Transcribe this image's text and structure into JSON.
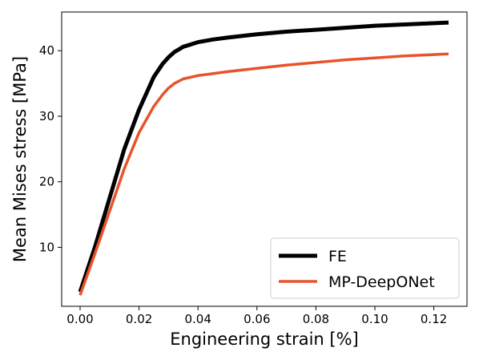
{
  "chart_data": {
    "type": "line",
    "title": "",
    "xlabel": "Engineering strain [%]",
    "ylabel": "Mean Mises stress [MPa]",
    "xlim": [
      -0.00625,
      0.13125
    ],
    "ylim": [
      1.0,
      45.9
    ],
    "xticks": [
      0.0,
      0.02,
      0.04,
      0.06,
      0.08,
      0.1,
      0.12
    ],
    "xtick_labels": [
      "0.00",
      "0.02",
      "0.04",
      "0.06",
      "0.08",
      "0.10",
      "0.12"
    ],
    "yticks": [
      10,
      20,
      30,
      40
    ],
    "ytick_labels": [
      "10",
      "20",
      "30",
      "40"
    ],
    "grid": false,
    "legend_position": "bottom-right",
    "series": [
      {
        "name": "FE",
        "color": "#000000",
        "x": [
          0.0,
          0.005,
          0.01,
          0.015,
          0.02,
          0.025,
          0.028,
          0.03,
          0.032,
          0.035,
          0.04,
          0.045,
          0.05,
          0.06,
          0.07,
          0.08,
          0.09,
          0.1,
          0.11,
          0.125
        ],
        "y": [
          3.2,
          10.0,
          17.5,
          25.0,
          31.0,
          36.0,
          38.0,
          39.0,
          39.8,
          40.6,
          41.3,
          41.7,
          42.0,
          42.5,
          42.9,
          43.2,
          43.5,
          43.8,
          44.0,
          44.3
        ]
      },
      {
        "name": "MP-DeepONet",
        "color": "#e8532b",
        "x": [
          0.0,
          0.005,
          0.01,
          0.015,
          0.02,
          0.025,
          0.028,
          0.03,
          0.032,
          0.035,
          0.04,
          0.045,
          0.05,
          0.06,
          0.07,
          0.08,
          0.09,
          0.1,
          0.11,
          0.125
        ],
        "y": [
          2.7,
          9.0,
          15.5,
          22.0,
          27.5,
          31.5,
          33.3,
          34.3,
          35.0,
          35.7,
          36.2,
          36.5,
          36.8,
          37.3,
          37.8,
          38.2,
          38.6,
          38.9,
          39.2,
          39.5
        ]
      }
    ]
  }
}
